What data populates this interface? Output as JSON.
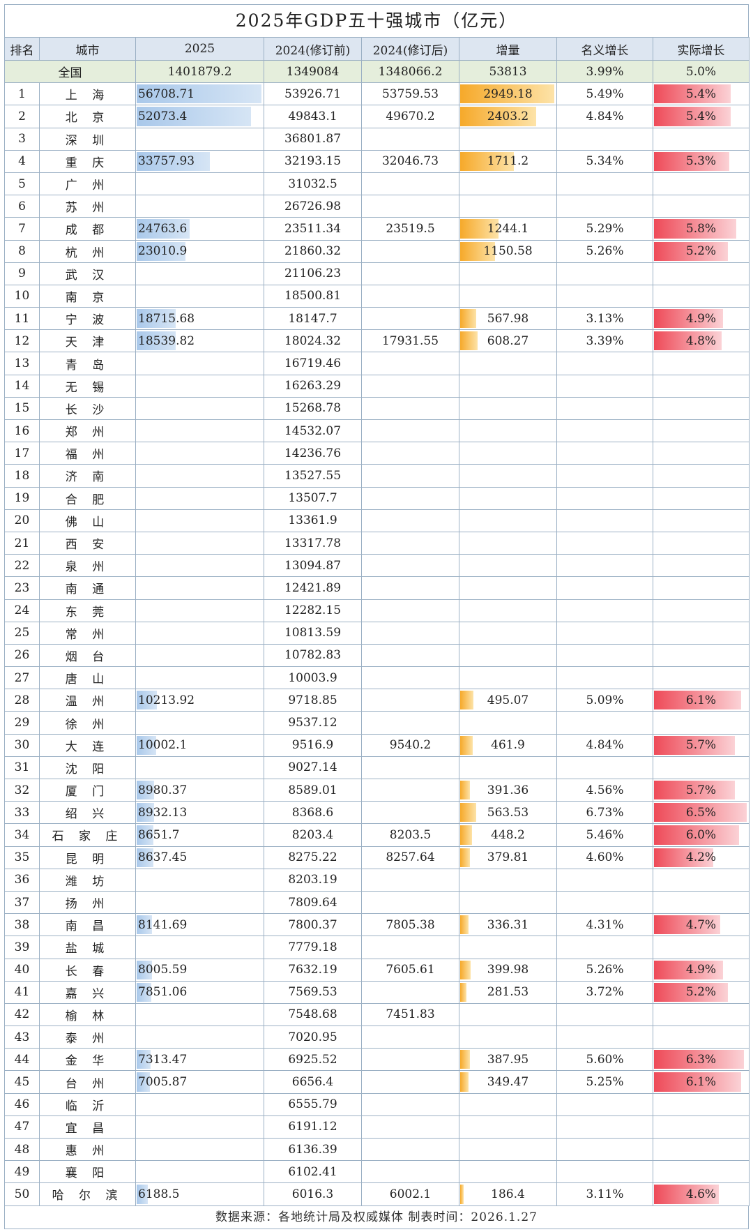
{
  "title": "2025年GDP五十强城市（亿元）",
  "headers": [
    "排名",
    "城市",
    "2025",
    "2024(修订前)",
    "2024(修订后)",
    "增量",
    "名义增长",
    "实际增长"
  ],
  "total": {
    "label": "全国",
    "gdp2025": "1401879.2",
    "pre": "1349084",
    "post": "1348066.2",
    "inc": "53813",
    "nom": "3.99%",
    "real": "5.0%"
  },
  "scale": {
    "gdp_max": 56708.71,
    "inc_max": 2949.18,
    "real_max": 6.5
  },
  "colors": {
    "blue": "#a9c8ea",
    "orange": "#f6a92a",
    "red": "#ee4a58"
  },
  "rows": [
    {
      "rank": "1",
      "city": "上 海",
      "gdp2025": "56708.71",
      "pre": "53926.71",
      "post": "53759.53",
      "inc": "2949.18",
      "nom": "5.49%",
      "real": "5.4%"
    },
    {
      "rank": "2",
      "city": "北 京",
      "gdp2025": "52073.4",
      "pre": "49843.1",
      "post": "49670.2",
      "inc": "2403.2",
      "nom": "4.84%",
      "real": "5.4%"
    },
    {
      "rank": "3",
      "city": "深 圳",
      "gdp2025": "",
      "pre": "36801.87",
      "post": "",
      "inc": "",
      "nom": "",
      "real": ""
    },
    {
      "rank": "4",
      "city": "重 庆",
      "gdp2025": "33757.93",
      "pre": "32193.15",
      "post": "32046.73",
      "inc": "1711.2",
      "nom": "5.34%",
      "real": "5.3%"
    },
    {
      "rank": "5",
      "city": "广 州",
      "gdp2025": "",
      "pre": "31032.5",
      "post": "",
      "inc": "",
      "nom": "",
      "real": ""
    },
    {
      "rank": "6",
      "city": "苏 州",
      "gdp2025": "",
      "pre": "26726.98",
      "post": "",
      "inc": "",
      "nom": "",
      "real": ""
    },
    {
      "rank": "7",
      "city": "成 都",
      "gdp2025": "24763.6",
      "pre": "23511.34",
      "post": "23519.5",
      "inc": "1244.1",
      "nom": "5.29%",
      "real": "5.8%"
    },
    {
      "rank": "8",
      "city": "杭 州",
      "gdp2025": "23010.9",
      "pre": "21860.32",
      "post": "",
      "inc": "1150.58",
      "nom": "5.26%",
      "real": "5.2%"
    },
    {
      "rank": "9",
      "city": "武 汉",
      "gdp2025": "",
      "pre": "21106.23",
      "post": "",
      "inc": "",
      "nom": "",
      "real": ""
    },
    {
      "rank": "10",
      "city": "南 京",
      "gdp2025": "",
      "pre": "18500.81",
      "post": "",
      "inc": "",
      "nom": "",
      "real": ""
    },
    {
      "rank": "11",
      "city": "宁 波",
      "gdp2025": "18715.68",
      "pre": "18147.7",
      "post": "",
      "inc": "567.98",
      "nom": "3.13%",
      "real": "4.9%"
    },
    {
      "rank": "12",
      "city": "天 津",
      "gdp2025": "18539.82",
      "pre": "18024.32",
      "post": "17931.55",
      "inc": "608.27",
      "nom": "3.39%",
      "real": "4.8%"
    },
    {
      "rank": "13",
      "city": "青 岛",
      "gdp2025": "",
      "pre": "16719.46",
      "post": "",
      "inc": "",
      "nom": "",
      "real": ""
    },
    {
      "rank": "14",
      "city": "无 锡",
      "gdp2025": "",
      "pre": "16263.29",
      "post": "",
      "inc": "",
      "nom": "",
      "real": ""
    },
    {
      "rank": "15",
      "city": "长 沙",
      "gdp2025": "",
      "pre": "15268.78",
      "post": "",
      "inc": "",
      "nom": "",
      "real": ""
    },
    {
      "rank": "16",
      "city": "郑 州",
      "gdp2025": "",
      "pre": "14532.07",
      "post": "",
      "inc": "",
      "nom": "",
      "real": ""
    },
    {
      "rank": "17",
      "city": "福 州",
      "gdp2025": "",
      "pre": "14236.76",
      "post": "",
      "inc": "",
      "nom": "",
      "real": ""
    },
    {
      "rank": "18",
      "city": "济 南",
      "gdp2025": "",
      "pre": "13527.55",
      "post": "",
      "inc": "",
      "nom": "",
      "real": ""
    },
    {
      "rank": "19",
      "city": "合 肥",
      "gdp2025": "",
      "pre": "13507.7",
      "post": "",
      "inc": "",
      "nom": "",
      "real": ""
    },
    {
      "rank": "20",
      "city": "佛 山",
      "gdp2025": "",
      "pre": "13361.9",
      "post": "",
      "inc": "",
      "nom": "",
      "real": ""
    },
    {
      "rank": "21",
      "city": "西 安",
      "gdp2025": "",
      "pre": "13317.78",
      "post": "",
      "inc": "",
      "nom": "",
      "real": ""
    },
    {
      "rank": "22",
      "city": "泉 州",
      "gdp2025": "",
      "pre": "13094.87",
      "post": "",
      "inc": "",
      "nom": "",
      "real": ""
    },
    {
      "rank": "23",
      "city": "南 通",
      "gdp2025": "",
      "pre": "12421.89",
      "post": "",
      "inc": "",
      "nom": "",
      "real": ""
    },
    {
      "rank": "24",
      "city": "东 莞",
      "gdp2025": "",
      "pre": "12282.15",
      "post": "",
      "inc": "",
      "nom": "",
      "real": ""
    },
    {
      "rank": "25",
      "city": "常 州",
      "gdp2025": "",
      "pre": "10813.59",
      "post": "",
      "inc": "",
      "nom": "",
      "real": ""
    },
    {
      "rank": "26",
      "city": "烟 台",
      "gdp2025": "",
      "pre": "10782.83",
      "post": "",
      "inc": "",
      "nom": "",
      "real": ""
    },
    {
      "rank": "27",
      "city": "唐 山",
      "gdp2025": "",
      "pre": "10003.9",
      "post": "",
      "inc": "",
      "nom": "",
      "real": ""
    },
    {
      "rank": "28",
      "city": "温 州",
      "gdp2025": "10213.92",
      "pre": "9718.85",
      "post": "",
      "inc": "495.07",
      "nom": "5.09%",
      "real": "6.1%"
    },
    {
      "rank": "29",
      "city": "徐 州",
      "gdp2025": "",
      "pre": "9537.12",
      "post": "",
      "inc": "",
      "nom": "",
      "real": ""
    },
    {
      "rank": "30",
      "city": "大 连",
      "gdp2025": "10002.1",
      "pre": "9516.9",
      "post": "9540.2",
      "inc": "461.9",
      "nom": "4.84%",
      "real": "5.7%"
    },
    {
      "rank": "31",
      "city": "沈 阳",
      "gdp2025": "",
      "pre": "9027.14",
      "post": "",
      "inc": "",
      "nom": "",
      "real": ""
    },
    {
      "rank": "32",
      "city": "厦 门",
      "gdp2025": "8980.37",
      "pre": "8589.01",
      "post": "",
      "inc": "391.36",
      "nom": "4.56%",
      "real": "5.7%"
    },
    {
      "rank": "33",
      "city": "绍 兴",
      "gdp2025": "8932.13",
      "pre": "8368.6",
      "post": "",
      "inc": "563.53",
      "nom": "6.73%",
      "real": "6.5%"
    },
    {
      "rank": "34",
      "city": "石 家 庄",
      "gdp2025": "8651.7",
      "pre": "8203.4",
      "post": "8203.5",
      "inc": "448.2",
      "nom": "5.46%",
      "real": "6.0%"
    },
    {
      "rank": "35",
      "city": "昆 明",
      "gdp2025": "8637.45",
      "pre": "8275.22",
      "post": "8257.64",
      "inc": "379.81",
      "nom": "4.60%",
      "real": "4.2%"
    },
    {
      "rank": "36",
      "city": "潍 坊",
      "gdp2025": "",
      "pre": "8203.19",
      "post": "",
      "inc": "",
      "nom": "",
      "real": ""
    },
    {
      "rank": "37",
      "city": "扬 州",
      "gdp2025": "",
      "pre": "7809.64",
      "post": "",
      "inc": "",
      "nom": "",
      "real": ""
    },
    {
      "rank": "38",
      "city": "南 昌",
      "gdp2025": "8141.69",
      "pre": "7800.37",
      "post": "7805.38",
      "inc": "336.31",
      "nom": "4.31%",
      "real": "4.7%"
    },
    {
      "rank": "39",
      "city": "盐 城",
      "gdp2025": "",
      "pre": "7779.18",
      "post": "",
      "inc": "",
      "nom": "",
      "real": ""
    },
    {
      "rank": "40",
      "city": "长 春",
      "gdp2025": "8005.59",
      "pre": "7632.19",
      "post": "7605.61",
      "inc": "399.98",
      "nom": "5.26%",
      "real": "4.9%"
    },
    {
      "rank": "41",
      "city": "嘉 兴",
      "gdp2025": "7851.06",
      "pre": "7569.53",
      "post": "",
      "inc": "281.53",
      "nom": "3.72%",
      "real": "5.2%"
    },
    {
      "rank": "42",
      "city": "榆 林",
      "gdp2025": "",
      "pre": "7548.68",
      "post": "7451.83",
      "inc": "",
      "nom": "",
      "real": ""
    },
    {
      "rank": "43",
      "city": "泰 州",
      "gdp2025": "",
      "pre": "7020.95",
      "post": "",
      "inc": "",
      "nom": "",
      "real": ""
    },
    {
      "rank": "44",
      "city": "金 华",
      "gdp2025": "7313.47",
      "pre": "6925.52",
      "post": "",
      "inc": "387.95",
      "nom": "5.60%",
      "real": "6.3%"
    },
    {
      "rank": "45",
      "city": "台 州",
      "gdp2025": "7005.87",
      "pre": "6656.4",
      "post": "",
      "inc": "349.47",
      "nom": "5.25%",
      "real": "6.1%"
    },
    {
      "rank": "46",
      "city": "临 沂",
      "gdp2025": "",
      "pre": "6555.79",
      "post": "",
      "inc": "",
      "nom": "",
      "real": ""
    },
    {
      "rank": "47",
      "city": "宜 昌",
      "gdp2025": "",
      "pre": "6191.12",
      "post": "",
      "inc": "",
      "nom": "",
      "real": ""
    },
    {
      "rank": "48",
      "city": "惠 州",
      "gdp2025": "",
      "pre": "6136.39",
      "post": "",
      "inc": "",
      "nom": "",
      "real": ""
    },
    {
      "rank": "49",
      "city": "襄 阳",
      "gdp2025": "",
      "pre": "6102.41",
      "post": "",
      "inc": "",
      "nom": "",
      "real": ""
    },
    {
      "rank": "50",
      "city": "哈 尔 滨",
      "gdp2025": "6188.5",
      "pre": "6016.3",
      "post": "6002.1",
      "inc": "186.4",
      "nom": "3.11%",
      "real": "4.6%"
    }
  ],
  "footer": "数据来源：各地统计局及权威媒体    制表时间：2026.1.27"
}
